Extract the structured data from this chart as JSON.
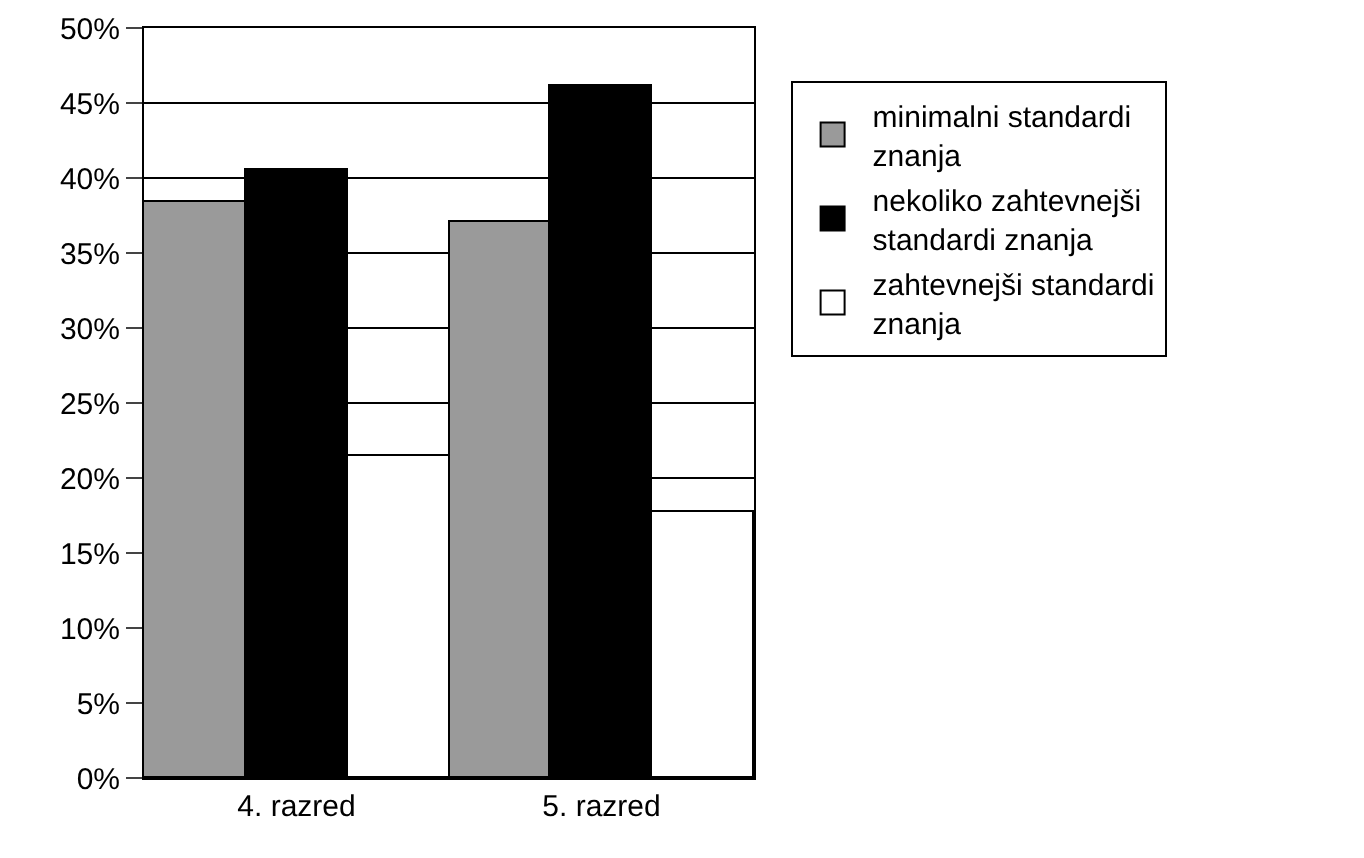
{
  "chart_data": {
    "type": "bar",
    "categories": [
      "4. razred",
      "5. razred"
    ],
    "series": [
      {
        "name": "minimalni standardi znanja",
        "color": "#9a9a9a",
        "values": [
          38.4,
          37.1
        ]
      },
      {
        "name": "nekoliko zahtevnejši standardi znanja",
        "color": "#000000",
        "values": [
          40.6,
          46.2
        ]
      },
      {
        "name": "zahtevnejši standardi znanja",
        "color": "#ffffff",
        "values": [
          21.5,
          17.8
        ]
      }
    ],
    "ylim": [
      0,
      50
    ],
    "yticks": [
      {
        "value": 0,
        "label": "0%"
      },
      {
        "value": 5,
        "label": "5%"
      },
      {
        "value": 10,
        "label": "10%"
      },
      {
        "value": 15,
        "label": "15%"
      },
      {
        "value": 20,
        "label": "20%"
      },
      {
        "value": 25,
        "label": "25%"
      },
      {
        "value": 30,
        "label": "30%"
      },
      {
        "value": 35,
        "label": "35%"
      },
      {
        "value": 40,
        "label": "40%"
      },
      {
        "value": 45,
        "label": "45%"
      },
      {
        "value": 50,
        "label": "50%"
      }
    ],
    "grid": "y",
    "legend": "right"
  }
}
